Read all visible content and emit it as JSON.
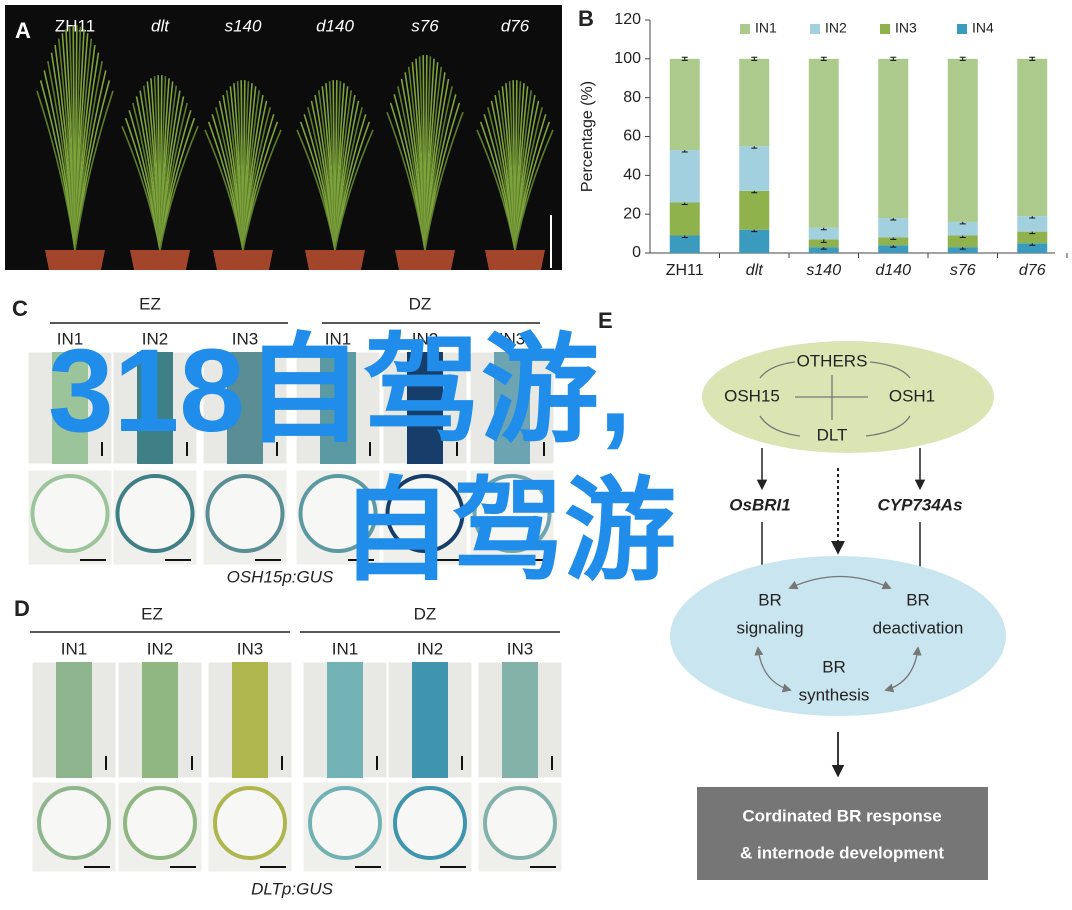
{
  "panel_labels": [
    "A",
    "B",
    "C",
    "D",
    "E"
  ],
  "panel_a": {
    "plants": [
      "ZH11",
      "dlt",
      "s140",
      "d140",
      "s76",
      "d76"
    ]
  },
  "chart_data": {
    "type": "bar",
    "stacked": true,
    "ylabel": "Percentage (%)",
    "categories": [
      "ZH11",
      "dlt",
      "s140",
      "d140",
      "s76",
      "d76"
    ],
    "series": [
      {
        "name": "IN1",
        "color": "#abca8c",
        "values": [
          47,
          45,
          87,
          82,
          84,
          81
        ],
        "errors": [
          0.8,
          0.8,
          0.8,
          0.8,
          0.8,
          0.8
        ]
      },
      {
        "name": "IN2",
        "color": "#a3d0de",
        "values": [
          27,
          23,
          6,
          10,
          7,
          8
        ],
        "errors": [
          1,
          1,
          1,
          1,
          1,
          1
        ]
      },
      {
        "name": "IN3",
        "color": "#8fb24c",
        "values": [
          17,
          20,
          4,
          4,
          6,
          6
        ],
        "errors": [
          1,
          1,
          1.5,
          1,
          1,
          1
        ]
      },
      {
        "name": "IN4",
        "color": "#3a9bbf",
        "values": [
          9,
          12,
          3,
          4,
          3,
          5
        ],
        "errors": [
          1,
          1,
          1,
          1,
          1,
          1
        ]
      }
    ],
    "ylim": [
      0,
      120
    ],
    "yticks": [
      0,
      20,
      40,
      60,
      80,
      100,
      120
    ],
    "legend": "top"
  },
  "panel_c": {
    "zones": [
      "EZ",
      "DZ"
    ],
    "internodes": [
      "IN1",
      "IN2",
      "IN3"
    ],
    "caption": "OSH15p:GUS"
  },
  "panel_d": {
    "zones": [
      "EZ",
      "DZ"
    ],
    "internodes": [
      "IN1",
      "IN2",
      "IN3"
    ],
    "caption": "DLTp:GUS"
  },
  "panel_e": {
    "regulators": {
      "top": "OTHERS",
      "left": "OSH15",
      "right": "OSH1",
      "bottom": "DLT"
    },
    "genes": [
      "OsBRI1",
      "CYP734As"
    ],
    "processes": [
      [
        "BR",
        "signaling"
      ],
      [
        "BR",
        "deactivation"
      ],
      [
        "BR",
        "synthesis"
      ]
    ],
    "outcome": [
      "Cordinated BR response",
      "& internode development"
    ]
  },
  "watermark": [
    "318自驾游,",
    "自驾游"
  ]
}
